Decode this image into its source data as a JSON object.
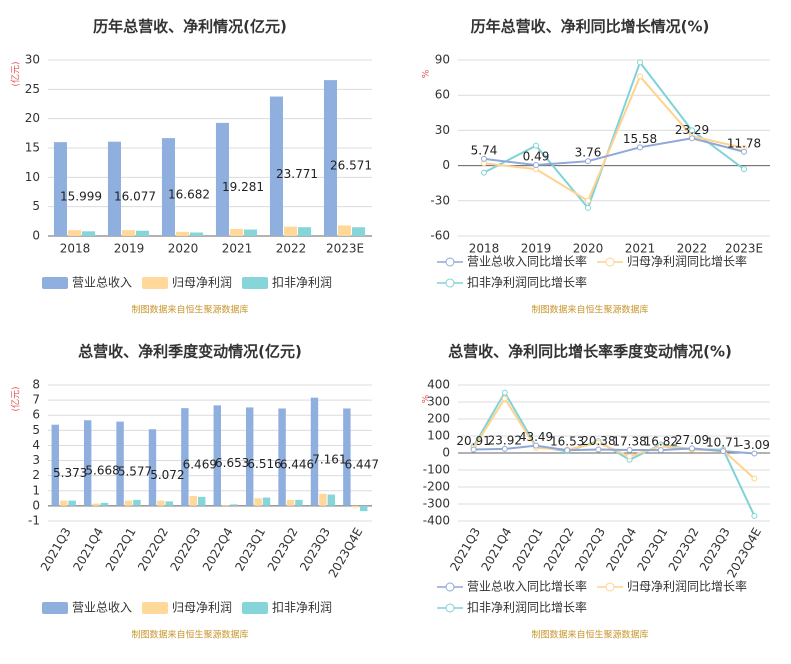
{
  "chart_data": [
    {
      "type": "bar",
      "title": "历年总营收、净利情况(亿元)",
      "y_unit": "(亿元)",
      "source": "制图数据来自恒生聚源数据库",
      "categories": [
        "2018",
        "2019",
        "2020",
        "2021",
        "2022",
        "2023E"
      ],
      "series": [
        {
          "name": "营业总收入",
          "color": "#8fb0de",
          "show_labels": true,
          "values": [
            15.999,
            16.077,
            16.682,
            19.281,
            23.771,
            26.571
          ]
        },
        {
          "name": "归母净利润",
          "color": "#ffd89a",
          "values": [
            1.0,
            1.0,
            0.7,
            1.2,
            1.6,
            1.8
          ]
        },
        {
          "name": "扣非净利润",
          "color": "#86d5d8",
          "values": [
            0.8,
            0.9,
            0.6,
            1.1,
            1.5,
            1.5
          ]
        }
      ],
      "ylim": [
        0,
        30
      ],
      "yticks": [
        0,
        5,
        10,
        15,
        20,
        25,
        30
      ],
      "grid": true,
      "rotate_x_labels": false
    },
    {
      "type": "line",
      "title": "历年总营收、净利同比增长情况(%)",
      "y_unit": "%",
      "source": "制图数据来自恒生聚源数据库",
      "categories": [
        "2018",
        "2019",
        "2020",
        "2021",
        "2022",
        "2023E"
      ],
      "series": [
        {
          "name": "营业总收入同比增长率",
          "color": "#8fa8d8",
          "show_labels": true,
          "values": [
            5.74,
            0.49,
            3.76,
            15.58,
            23.29,
            11.78
          ]
        },
        {
          "name": "归母净利润同比增长率",
          "color": "#ffd28f",
          "values": [
            2,
            -3,
            -30,
            76,
            25,
            15
          ]
        },
        {
          "name": "扣非净利润同比增长率",
          "color": "#7fd3d8",
          "values": [
            -6,
            17,
            -36,
            88,
            30,
            -3
          ]
        }
      ],
      "ylim": [
        -60,
        90
      ],
      "yticks": [
        -60,
        -30,
        0,
        30,
        60,
        90
      ],
      "grid": true,
      "rotate_x_labels": false
    },
    {
      "type": "bar",
      "title": "总营收、净利季度变动情况(亿元)",
      "y_unit": "(亿元)",
      "source": "制图数据来自恒生聚源数据库",
      "categories": [
        "2021Q3",
        "2021Q4",
        "2022Q1",
        "2022Q2",
        "2022Q3",
        "2022Q4",
        "2023Q1",
        "2023Q2",
        "2023Q3",
        "2023Q4E"
      ],
      "series": [
        {
          "name": "营业总收入",
          "color": "#8fb0de",
          "show_labels": true,
          "values": [
            5.373,
            5.668,
            5.577,
            5.072,
            6.469,
            6.653,
            6.516,
            6.446,
            7.161,
            6.447
          ]
        },
        {
          "name": "归母净利润",
          "color": "#ffd89a",
          "values": [
            0.35,
            0.15,
            0.35,
            0.35,
            0.65,
            0.05,
            0.5,
            0.4,
            0.8,
            -0.1
          ]
        },
        {
          "name": "扣非净利润",
          "color": "#86d5d8",
          "values": [
            0.35,
            0.2,
            0.4,
            0.3,
            0.6,
            0.1,
            0.55,
            0.4,
            0.75,
            -0.35
          ]
        }
      ],
      "ylim": [
        -1,
        8
      ],
      "yticks": [
        -1,
        0,
        1,
        2,
        3,
        4,
        5,
        6,
        7,
        8
      ],
      "grid": true,
      "rotate_x_labels": true
    },
    {
      "type": "line",
      "title": "总营收、净利同比增长率季度变动情况(%)",
      "y_unit": "%",
      "source": "制图数据来自恒生聚源数据库",
      "categories": [
        "2021Q3",
        "2021Q4",
        "2022Q1",
        "2022Q2",
        "2022Q3",
        "2022Q4",
        "2023Q1",
        "2023Q2",
        "2023Q3",
        "2023Q4E"
      ],
      "series": [
        {
          "name": "营业总收入同比增长率",
          "color": "#8fa8d8",
          "show_labels": true,
          "values": [
            20.91,
            23.92,
            43.49,
            16.53,
            20.38,
            17.38,
            16.82,
            27.09,
            10.71,
            -3.09
          ]
        },
        {
          "name": "归母净利润同比增长率",
          "color": "#ffd28f",
          "values": [
            30,
            320,
            30,
            20,
            60,
            -20,
            40,
            20,
            15,
            -150
          ]
        },
        {
          "name": "扣非净利润同比增长率",
          "color": "#7fd3d8",
          "values": [
            40,
            355,
            40,
            10,
            70,
            -40,
            50,
            20,
            20,
            -370
          ]
        }
      ],
      "ylim": [
        -400,
        400
      ],
      "yticks": [
        -400,
        -300,
        -200,
        -100,
        0,
        100,
        200,
        300,
        400
      ],
      "grid": true,
      "rotate_x_labels": true
    }
  ]
}
